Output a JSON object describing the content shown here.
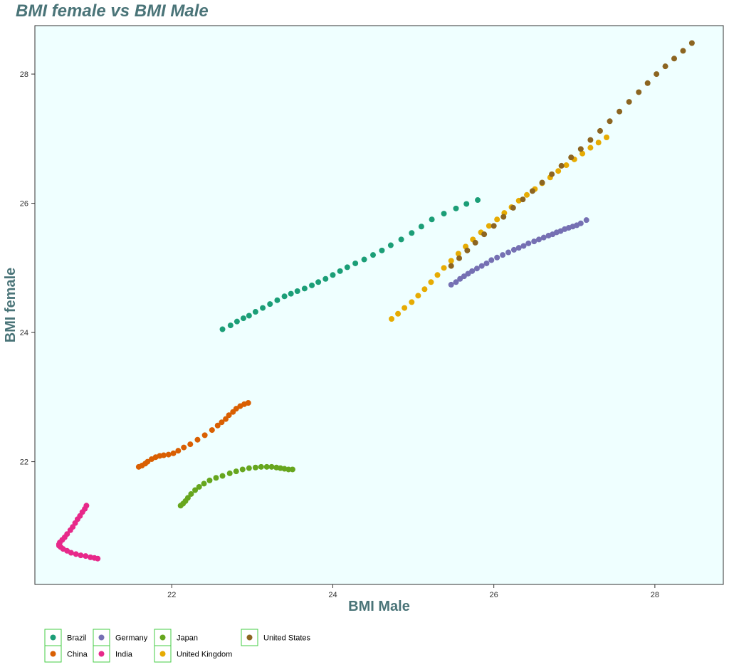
{
  "chart_data": {
    "type": "scatter",
    "title": "BMI female vs BMI Male",
    "xlabel": "BMI Male",
    "ylabel": "BMI female",
    "xlim": [
      20.3,
      28.85
    ],
    "ylim": [
      20.1,
      28.75
    ],
    "xticks": [
      22,
      24,
      26,
      28
    ],
    "yticks": [
      22,
      24,
      26,
      28
    ],
    "grid": false,
    "legend_position": "bottom-left",
    "background_color": "#efffff",
    "series": [
      {
        "name": "Brazil",
        "color": "#1b9e77",
        "x": [
          22.63,
          22.73,
          22.81,
          22.89,
          22.96,
          23.04,
          23.13,
          23.22,
          23.31,
          23.4,
          23.48,
          23.56,
          23.65,
          23.74,
          23.82,
          23.91,
          24.0,
          24.09,
          24.18,
          24.28,
          24.39,
          24.5,
          24.61,
          24.72,
          24.85,
          24.98,
          25.1,
          25.23,
          25.38,
          25.53,
          25.66,
          25.8
        ],
        "y": [
          24.05,
          24.11,
          24.17,
          24.22,
          24.26,
          24.32,
          24.38,
          24.44,
          24.5,
          24.56,
          24.6,
          24.64,
          24.68,
          24.73,
          24.78,
          24.83,
          24.89,
          24.95,
          25.01,
          25.07,
          25.13,
          25.2,
          25.27,
          25.35,
          25.44,
          25.54,
          25.64,
          25.75,
          25.84,
          25.92,
          25.99,
          26.05
        ]
      },
      {
        "name": "China",
        "color": "#d95f02",
        "x": [
          21.59,
          21.63,
          21.67,
          21.7,
          21.75,
          21.8,
          21.85,
          21.9,
          21.96,
          22.02,
          22.08,
          22.15,
          22.23,
          22.32,
          22.41,
          22.5,
          22.57,
          22.62,
          22.67,
          22.71,
          22.76,
          22.8,
          22.85,
          22.9,
          22.95
        ],
        "y": [
          21.92,
          21.94,
          21.97,
          22.0,
          22.04,
          22.07,
          22.09,
          22.1,
          22.11,
          22.13,
          22.17,
          22.22,
          22.27,
          22.34,
          22.41,
          22.49,
          22.56,
          22.61,
          22.66,
          22.72,
          22.77,
          22.82,
          22.86,
          22.89,
          22.91
        ]
      },
      {
        "name": "Germany",
        "color": "#7570b3",
        "x": [
          25.47,
          25.53,
          25.58,
          25.63,
          25.68,
          25.73,
          25.79,
          25.85,
          25.91,
          25.97,
          26.04,
          26.11,
          26.18,
          26.25,
          26.31,
          26.37,
          26.43,
          26.5,
          26.56,
          26.62,
          26.68,
          26.73,
          26.78,
          26.83,
          26.88,
          26.93,
          26.98,
          27.03,
          27.08,
          27.15
        ],
        "y": [
          24.74,
          24.78,
          24.83,
          24.87,
          24.91,
          24.95,
          24.99,
          25.03,
          25.07,
          25.12,
          25.16,
          25.2,
          25.24,
          25.28,
          25.31,
          25.34,
          25.38,
          25.41,
          25.44,
          25.47,
          25.5,
          25.52,
          25.55,
          25.57,
          25.6,
          25.62,
          25.64,
          25.66,
          25.69,
          25.74
        ]
      },
      {
        "name": "India",
        "color": "#e7298a",
        "x": [
          20.94,
          20.92,
          20.89,
          20.86,
          20.83,
          20.8,
          20.77,
          20.74,
          20.7,
          20.67,
          20.64,
          20.61,
          20.6,
          20.6,
          20.62,
          20.65,
          20.7,
          20.75,
          20.81,
          20.87,
          20.93,
          20.99,
          21.04,
          21.08
        ],
        "y": [
          21.32,
          21.27,
          21.22,
          21.16,
          21.11,
          21.05,
          20.99,
          20.94,
          20.88,
          20.83,
          20.79,
          20.75,
          20.72,
          20.7,
          20.68,
          20.65,
          20.62,
          20.59,
          20.57,
          20.55,
          20.54,
          20.52,
          20.51,
          20.5
        ]
      },
      {
        "name": "Japan",
        "color": "#66a61e",
        "x": [
          22.11,
          22.14,
          22.17,
          22.2,
          22.24,
          22.29,
          22.34,
          22.4,
          22.47,
          22.55,
          22.63,
          22.72,
          22.8,
          22.88,
          22.96,
          23.04,
          23.11,
          23.18,
          23.24,
          23.3,
          23.35,
          23.4,
          23.45,
          23.5
        ],
        "y": [
          21.32,
          21.35,
          21.39,
          21.44,
          21.5,
          21.56,
          21.61,
          21.66,
          21.71,
          21.75,
          21.78,
          21.82,
          21.85,
          21.88,
          21.9,
          21.91,
          21.92,
          21.92,
          21.92,
          21.91,
          21.9,
          21.89,
          21.88,
          21.88
        ]
      },
      {
        "name": "United Kingdom",
        "color": "#e6ab02",
        "x": [
          24.73,
          24.81,
          24.89,
          24.98,
          25.06,
          25.14,
          25.22,
          25.3,
          25.38,
          25.47,
          25.56,
          25.65,
          25.74,
          25.84,
          25.94,
          26.04,
          26.13,
          26.22,
          26.31,
          26.41,
          26.51,
          26.6,
          26.7,
          26.8,
          26.9,
          27.0,
          27.1,
          27.2,
          27.3,
          27.4
        ],
        "y": [
          24.21,
          24.29,
          24.38,
          24.47,
          24.57,
          24.67,
          24.78,
          24.89,
          25.0,
          25.11,
          25.22,
          25.33,
          25.44,
          25.55,
          25.65,
          25.75,
          25.85,
          25.94,
          26.04,
          26.13,
          26.22,
          26.31,
          26.4,
          26.5,
          26.59,
          26.68,
          26.77,
          26.86,
          26.94,
          27.02
        ]
      },
      {
        "name": "United States",
        "color": "#8c6521",
        "x": [
          25.47,
          25.57,
          25.67,
          25.77,
          25.88,
          26.0,
          26.12,
          26.24,
          26.36,
          26.48,
          26.6,
          26.72,
          26.84,
          26.96,
          27.08,
          27.2,
          27.32,
          27.44,
          27.56,
          27.68,
          27.8,
          27.91,
          28.02,
          28.13,
          28.24,
          28.35,
          28.46
        ],
        "y": [
          25.03,
          25.15,
          25.27,
          25.39,
          25.52,
          25.65,
          25.79,
          25.93,
          26.06,
          26.19,
          26.32,
          26.45,
          26.58,
          26.71,
          26.84,
          26.98,
          27.12,
          27.27,
          27.42,
          27.57,
          27.72,
          27.86,
          28.0,
          28.12,
          28.24,
          28.36,
          28.48
        ]
      }
    ]
  }
}
